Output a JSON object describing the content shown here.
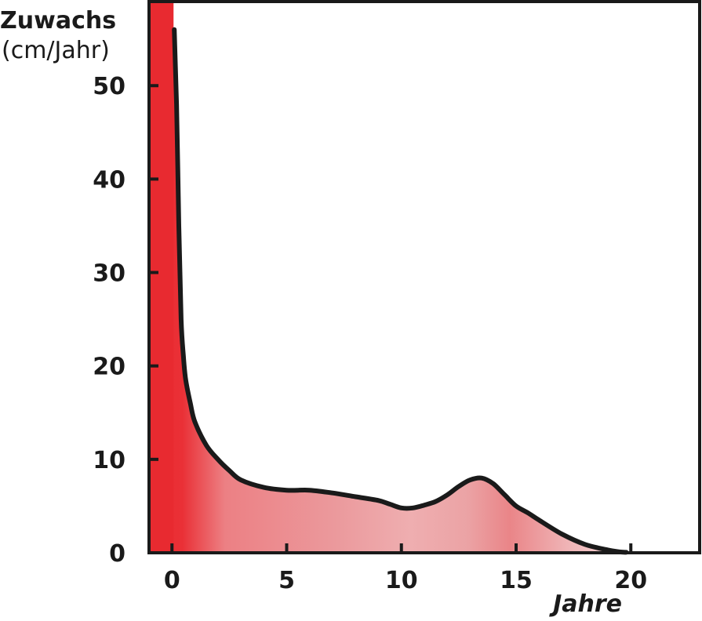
{
  "chart_data": {
    "type": "area",
    "title": "",
    "ylabel": "Zuwachs",
    "ylabel_unit": "(cm/Jahr)",
    "xlabel": "Jahre",
    "xlim": [
      -1,
      23
    ],
    "ylim": [
      0,
      59
    ],
    "x_ticks": [
      0,
      5,
      10,
      15,
      20
    ],
    "x_tick_labels": [
      "0",
      "5",
      "10",
      "15",
      "20"
    ],
    "y_ticks": [
      0,
      10,
      20,
      30,
      40,
      50
    ],
    "y_tick_labels": [
      "0",
      "10",
      "20",
      "30",
      "40",
      "50"
    ],
    "grid": false,
    "legend": "none",
    "series": [
      {
        "x": [
          0.1,
          0.2,
          0.3,
          0.4,
          0.5,
          0.6,
          0.8,
          1.0,
          1.5,
          2.0,
          2.5,
          3.0,
          4.0,
          5.0,
          6.0,
          7.0,
          8.0,
          9.0,
          9.5,
          10.0,
          10.5,
          11.0,
          11.5,
          12.0,
          12.5,
          13.0,
          13.5,
          14.0,
          14.5,
          15.0,
          15.5,
          16.0,
          17.0,
          18.0,
          19.0,
          19.5,
          19.8
        ],
        "y": [
          56,
          48,
          35,
          25,
          21,
          18.5,
          16,
          14,
          11.5,
          10,
          8.8,
          7.8,
          7.0,
          6.7,
          6.7,
          6.4,
          6.0,
          5.6,
          5.2,
          4.8,
          4.8,
          5.1,
          5.5,
          6.2,
          7.1,
          7.8,
          8.0,
          7.4,
          6.2,
          5.0,
          4.3,
          3.5,
          2.0,
          0.9,
          0.3,
          0.1,
          0.05
        ]
      }
    ],
    "colors": {
      "bar_fill": "#e82a30",
      "area_red": "#e82a30",
      "area_light": "#f3c5c6",
      "line": "#1a1a1a"
    }
  }
}
